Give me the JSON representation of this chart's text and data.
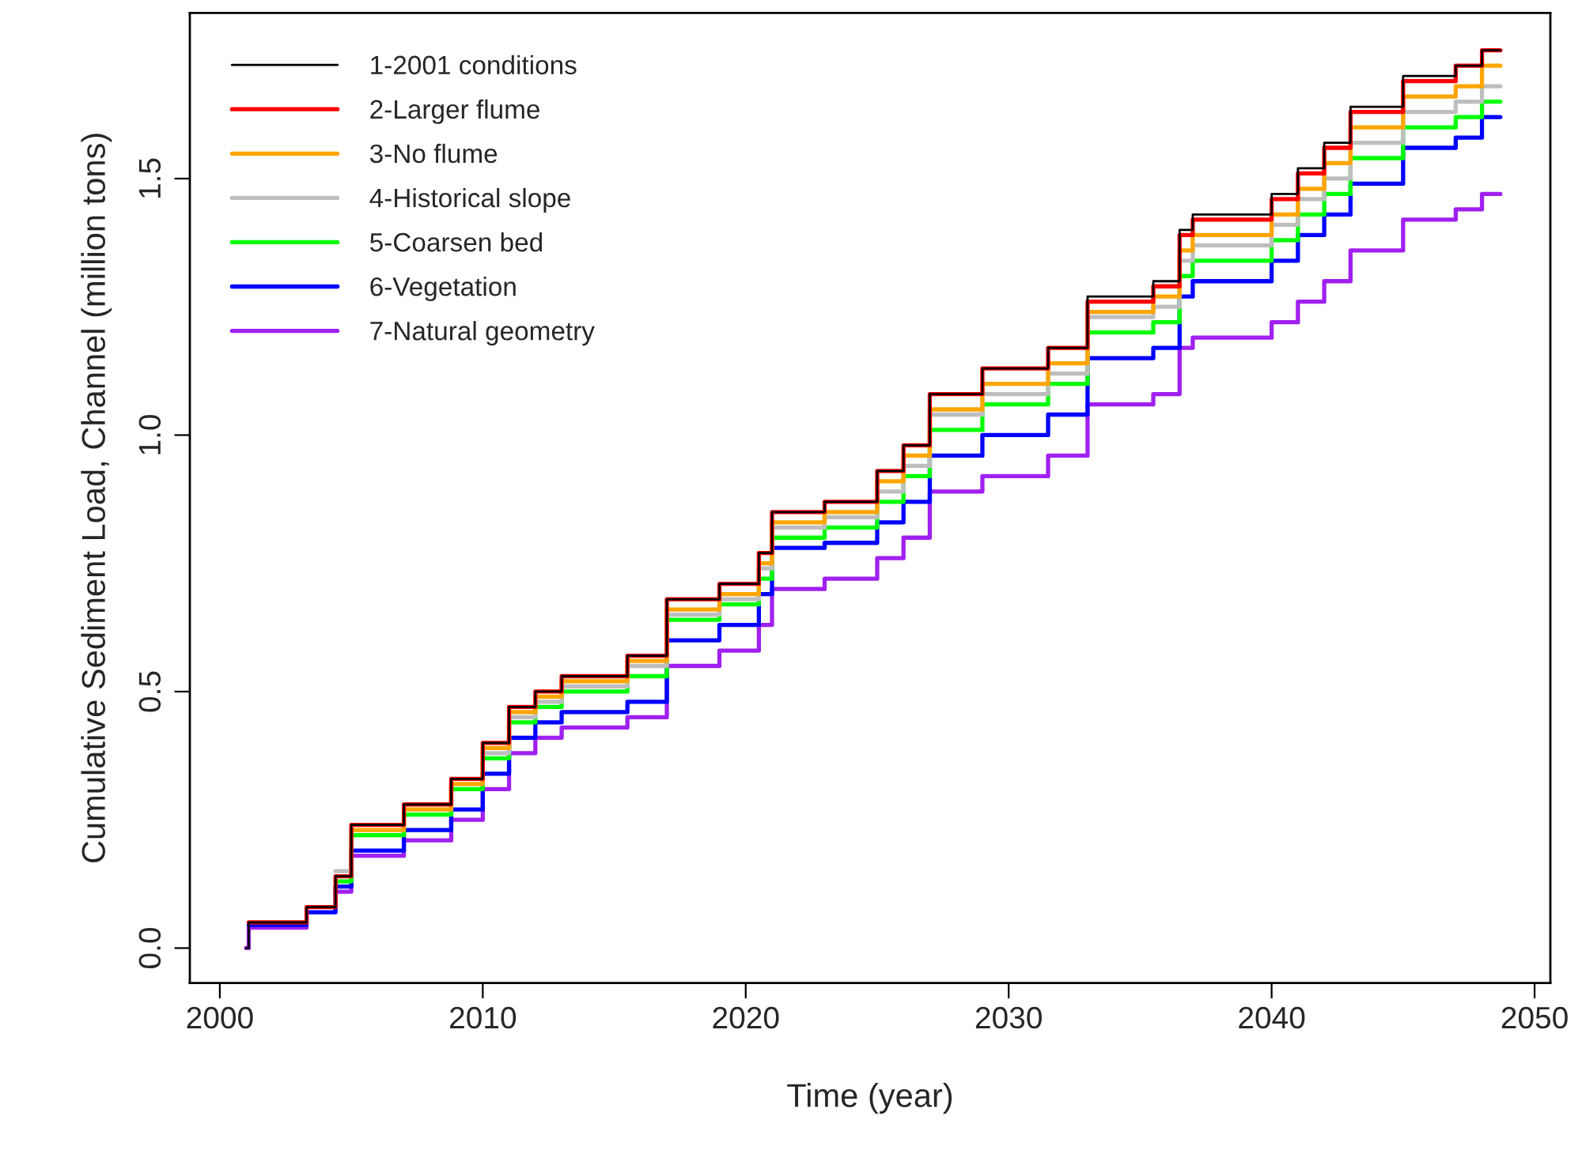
{
  "chart_data": {
    "type": "step",
    "xlabel": "Time (year)",
    "ylabel": "Cumulative Sediment Load, Channel (million tons)",
    "x": [
      2001.0,
      2001.1,
      2003.3,
      2004.4,
      2005.0,
      2007.0,
      2008.8,
      2010.0,
      2011.0,
      2012.0,
      2013.0,
      2015.5,
      2017.0,
      2019.0,
      2020.5,
      2021.0,
      2023.0,
      2025.0,
      2026.0,
      2027.0,
      2029.0,
      2031.5,
      2033.0,
      2035.5,
      2036.5,
      2037.0,
      2040.0,
      2041.0,
      2042.0,
      2043.0,
      2045.0,
      2047.0,
      2048.0,
      2048.7
    ],
    "series": [
      {
        "name": "1-2001 conditions",
        "color": "#000000",
        "values": [
          0,
          0.05,
          0.08,
          0.14,
          0.24,
          0.28,
          0.33,
          0.4,
          0.47,
          0.5,
          0.53,
          0.57,
          0.68,
          0.71,
          0.77,
          0.85,
          0.87,
          0.93,
          0.98,
          1.08,
          1.13,
          1.17,
          1.27,
          1.3,
          1.4,
          1.43,
          1.47,
          1.52,
          1.57,
          1.64,
          1.7,
          1.72,
          1.75,
          1.75
        ]
      },
      {
        "name": "2-Larger flume",
        "color": "#ff0000",
        "values": [
          null,
          0.05,
          0.08,
          0.14,
          0.24,
          0.28,
          0.33,
          0.4,
          0.47,
          0.5,
          0.53,
          0.57,
          0.68,
          0.71,
          0.77,
          0.85,
          0.87,
          0.93,
          0.98,
          1.08,
          1.13,
          1.17,
          1.26,
          1.29,
          1.39,
          1.42,
          1.46,
          1.51,
          1.56,
          1.63,
          1.69,
          1.72,
          1.75,
          1.75
        ]
      },
      {
        "name": "3-No flume",
        "color": "#ffa500",
        "values": [
          null,
          null,
          null,
          null,
          0.23,
          0.27,
          0.32,
          0.39,
          0.46,
          0.49,
          0.52,
          0.56,
          0.66,
          0.69,
          0.75,
          0.83,
          0.85,
          0.91,
          0.96,
          1.05,
          1.1,
          1.14,
          1.24,
          1.27,
          1.36,
          1.39,
          1.43,
          1.48,
          1.53,
          1.6,
          1.66,
          1.68,
          1.72,
          1.72
        ]
      },
      {
        "name": "4-Historical slope",
        "color": "#bebebe",
        "values": [
          null,
          null,
          null,
          0.15,
          null,
          null,
          null,
          0.38,
          0.45,
          0.48,
          0.51,
          0.55,
          0.65,
          0.68,
          0.74,
          0.82,
          0.84,
          0.89,
          0.94,
          1.04,
          1.08,
          1.12,
          1.23,
          1.25,
          1.34,
          1.37,
          1.41,
          1.46,
          1.5,
          1.57,
          1.63,
          1.65,
          1.68,
          1.68
        ]
      },
      {
        "name": "5-Coarsen bed",
        "color": "#00ff00",
        "values": [
          null,
          null,
          null,
          0.13,
          0.22,
          0.26,
          0.31,
          0.37,
          0.44,
          0.47,
          0.5,
          0.53,
          0.64,
          0.67,
          0.72,
          0.8,
          0.82,
          0.87,
          0.92,
          1.01,
          1.06,
          1.1,
          1.2,
          1.22,
          1.31,
          1.34,
          1.38,
          1.43,
          1.47,
          1.54,
          1.6,
          1.62,
          1.65,
          1.65
        ]
      },
      {
        "name": "6-Vegetation",
        "color": "#0000ff",
        "values": [
          null,
          0.045,
          0.07,
          0.12,
          0.19,
          0.23,
          0.27,
          0.34,
          0.41,
          0.44,
          0.46,
          0.48,
          0.6,
          0.63,
          0.69,
          0.78,
          0.79,
          0.83,
          0.87,
          0.96,
          1.0,
          1.04,
          1.15,
          1.17,
          1.27,
          1.3,
          1.34,
          1.39,
          1.43,
          1.49,
          1.56,
          1.58,
          1.62,
          1.62
        ]
      },
      {
        "name": "7-Natural geometry",
        "color": "#a020f0",
        "values": [
          0,
          0.04,
          null,
          0.11,
          0.18,
          0.21,
          0.25,
          0.31,
          0.38,
          0.41,
          0.43,
          0.45,
          0.55,
          0.58,
          0.63,
          0.7,
          0.72,
          0.76,
          0.8,
          0.89,
          0.92,
          0.96,
          1.06,
          1.08,
          1.17,
          1.19,
          1.22,
          1.26,
          1.3,
          1.36,
          1.42,
          1.44,
          1.47,
          1.47
        ]
      }
    ],
    "xlim": [
      1998.86,
      2050.6
    ],
    "ylim": [
      -0.068,
      1.823
    ],
    "xticks": [
      2000,
      2010,
      2020,
      2030,
      2040,
      2050
    ],
    "yticks": [
      {
        "value": 0,
        "label": "0.0"
      },
      {
        "value": 0.5,
        "label": "0.5"
      },
      {
        "value": 1.0,
        "label": "1.0"
      },
      {
        "value": 1.5,
        "label": "1.5"
      }
    ],
    "grid": false,
    "legend": "top left"
  }
}
